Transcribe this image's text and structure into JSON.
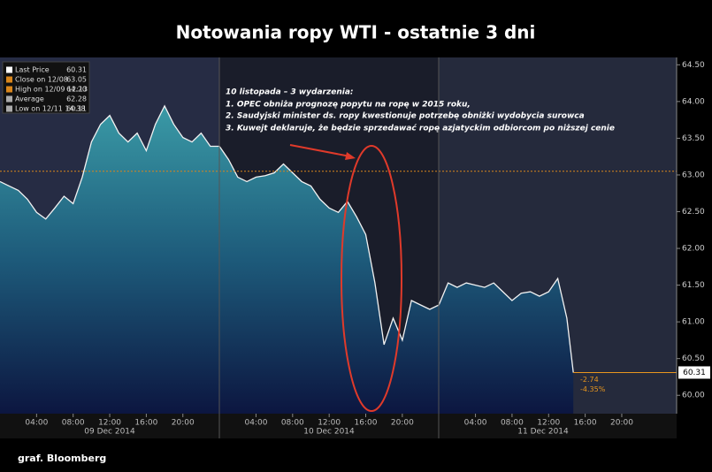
{
  "chart_data": {
    "type": "line",
    "title": "Notowania ropy WTI - ostatnie 3 dni",
    "x": [
      0,
      1,
      2,
      3,
      4,
      5,
      6,
      7,
      8,
      9,
      10,
      11,
      12,
      13,
      14,
      15,
      16,
      17,
      18,
      19,
      20,
      21,
      22,
      23,
      24,
      25,
      26,
      27,
      28,
      29,
      30,
      31,
      32,
      33,
      34,
      35,
      36,
      37,
      38,
      39,
      40,
      41,
      42,
      43,
      44,
      45,
      46,
      47,
      48,
      49,
      50,
      51,
      52,
      53,
      54,
      55,
      56,
      57,
      58,
      59,
      60,
      61,
      62,
      62.7
    ],
    "series": [
      {
        "name": "Last Price",
        "color": "#f2f2f2",
        "values": [
          62.91,
          62.85,
          62.79,
          62.67,
          62.49,
          62.4,
          62.55,
          62.71,
          62.61,
          62.97,
          63.45,
          63.69,
          63.81,
          63.57,
          63.45,
          63.57,
          63.33,
          63.69,
          63.94,
          63.69,
          63.51,
          63.45,
          63.57,
          63.39,
          63.39,
          63.21,
          62.97,
          62.91,
          62.97,
          62.99,
          63.03,
          63.15,
          63.03,
          62.91,
          62.85,
          62.67,
          62.55,
          62.49,
          62.64,
          62.43,
          62.19,
          61.53,
          60.69,
          61.05,
          60.75,
          61.29,
          61.23,
          61.17,
          61.23,
          61.53,
          61.47,
          61.53,
          61.5,
          61.47,
          61.53,
          61.41,
          61.29,
          61.39,
          61.41,
          61.35,
          61.41,
          61.59,
          61.05,
          60.31
        ]
      }
    ],
    "xlim": [
      0,
      74
    ],
    "ylim": [
      59.75,
      64.6
    ],
    "xticks": [
      {
        "value": 4,
        "label": "04:00"
      },
      {
        "value": 8,
        "label": "08:00"
      },
      {
        "value": 12,
        "label": "12:00"
      },
      {
        "value": 16,
        "label": "16:00"
      },
      {
        "value": 20,
        "label": "20:00"
      },
      {
        "value": 28,
        "label": "04:00"
      },
      {
        "value": 32,
        "label": "08:00"
      },
      {
        "value": 36,
        "label": "12:00"
      },
      {
        "value": 40,
        "label": "16:00"
      },
      {
        "value": 44,
        "label": "20:00"
      },
      {
        "value": 52,
        "label": "04:00"
      },
      {
        "value": 56,
        "label": "08:00"
      },
      {
        "value": 60,
        "label": "12:00"
      },
      {
        "value": 64,
        "label": "16:00"
      },
      {
        "value": 68,
        "label": "20:00"
      }
    ],
    "yticks": [
      {
        "value": 64.5,
        "label": "64.50"
      },
      {
        "value": 64,
        "label": "64.00"
      },
      {
        "value": 63.5,
        "label": "63.50"
      },
      {
        "value": 63,
        "label": "63.00"
      },
      {
        "value": 62.5,
        "label": "62.50"
      },
      {
        "value": 62,
        "label": "62.00"
      },
      {
        "value": 61.5,
        "label": "61.50"
      },
      {
        "value": 61,
        "label": "61.00"
      },
      {
        "value": 60.5,
        "label": "60.50"
      },
      {
        "value": 60,
        "label": "60.00"
      }
    ],
    "day_labels": [
      "09 Dec 2014",
      "10 Dec 2014",
      "11 Dec 2014"
    ],
    "reference_lines": [
      {
        "value": 63.05,
        "color": "#d9861c"
      },
      {
        "value": 60.31,
        "color": "#e8961e"
      }
    ],
    "last_price_label": "60.31",
    "change_labels": [
      "-2.74",
      "-4.35%"
    ],
    "legend": [
      {
        "label": "Last Price",
        "value": "60.31"
      },
      {
        "label": "Close on 12/08",
        "value": "63.05"
      },
      {
        "label": "High on 12/09 12:13",
        "value": "64.20"
      },
      {
        "label": "Average",
        "value": "62.28"
      },
      {
        "label": "Low on 12/11 14:38",
        "value": "60.11"
      }
    ],
    "annotation": [
      "10 listopada – 3 wydarzenia:",
      "1. OPEC obniża prognozę popytu na ropę w 2015 roku,",
      "2. Saudyjski minister ds. ropy kwestionuje potrzebę obniżki wydobycia surowca",
      "3. Kuwejt deklaruje, że będzie sprzedawać ropę azjatyckim odbiorcom po niższej cenie"
    ],
    "footer": "graf. Bloomberg"
  }
}
